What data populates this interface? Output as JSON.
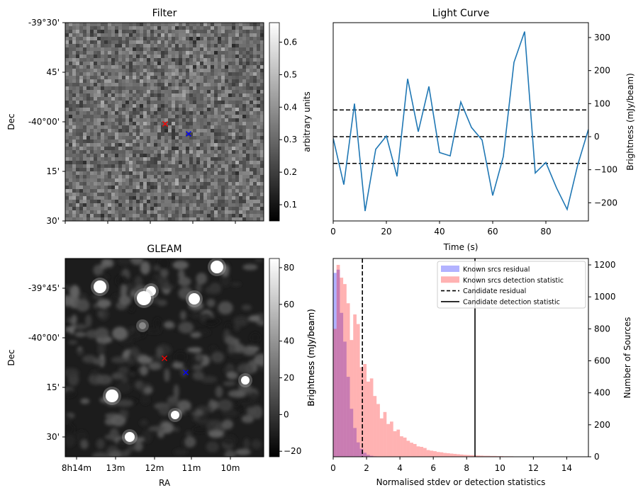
{
  "chart_data": [
    {
      "id": "filter",
      "type": "heatmap",
      "title": "Filter",
      "ylabel": "Dec",
      "ytick_labels": [
        "-39°30'",
        "45'",
        "-40°00'",
        "15'",
        "30'"
      ],
      "colorbar": {
        "label": "arbitrary units",
        "range": [
          0.05,
          0.66
        ],
        "ticks": [
          0.1,
          0.2,
          0.3,
          0.4,
          0.5,
          0.6
        ],
        "tick_labels": [
          "0.1",
          "0.2",
          "0.3",
          "0.4",
          "0.5",
          "0.6"
        ],
        "colormap": "gray"
      },
      "markers": [
        {
          "symbol": "x",
          "color": "#ff0000"
        },
        {
          "symbol": "x",
          "color": "#0000ff"
        }
      ]
    },
    {
      "id": "lightcurve",
      "type": "line",
      "title": "Light Curve",
      "xlabel": "Time (s)",
      "ylabel": "Brightness (mJy/beam)",
      "xlim": [
        0,
        96
      ],
      "ylim": [
        -255,
        345
      ],
      "xticks": [
        0,
        20,
        40,
        60,
        80
      ],
      "yticks": [
        -200,
        -100,
        0,
        100,
        200,
        300
      ],
      "color": "#1f77b4",
      "x": [
        0,
        4,
        8,
        12,
        16,
        20,
        24,
        28,
        32,
        36,
        40,
        44,
        48,
        52,
        56,
        60,
        64,
        68,
        72,
        76,
        80,
        84,
        88,
        92,
        96
      ],
      "y": [
        -5,
        -145,
        100,
        -225,
        -38,
        2,
        -120,
        175,
        15,
        152,
        -48,
        -58,
        105,
        28,
        -10,
        -178,
        -60,
        225,
        318,
        -110,
        -78,
        -155,
        -220,
        -85,
        22
      ],
      "hlines": [
        {
          "y": 81,
          "style": "dashed",
          "color": "#000000"
        },
        {
          "y": 0,
          "style": "dashed",
          "color": "#000000"
        },
        {
          "y": -81,
          "style": "dashed",
          "color": "#000000"
        }
      ]
    },
    {
      "id": "gleam",
      "type": "heatmap",
      "title": "GLEAM",
      "xlabel": "RA",
      "ylabel": "Dec",
      "xtick_labels": [
        "8h14m",
        "13m",
        "12m",
        "11m",
        "10m"
      ],
      "ytick_labels": [
        "-39°45'",
        "-40°00'",
        "15'",
        "30'"
      ],
      "colorbar": {
        "label": "Brightness (mJy/beam)",
        "range": [
          -23,
          85
        ],
        "ticks": [
          -20,
          0,
          20,
          40,
          60,
          80
        ],
        "tick_labels": [
          "−20",
          "0",
          "20",
          "40",
          "60",
          "80"
        ],
        "colormap": "gray"
      },
      "markers": [
        {
          "symbol": "x",
          "color": "#ff0000"
        },
        {
          "symbol": "x",
          "color": "#0000ff"
        }
      ]
    },
    {
      "id": "hist",
      "type": "bar",
      "xlabel": "Normalised stdev or detection statistics",
      "ylabel": "Number of Sources",
      "xlim": [
        0,
        15.3
      ],
      "ylim": [
        0,
        1240
      ],
      "xticks": [
        0,
        2,
        4,
        6,
        8,
        10,
        12,
        14
      ],
      "yticks": [
        0,
        200,
        400,
        600,
        800,
        1000,
        1200
      ],
      "bin_width": 0.2,
      "bin_start": 0,
      "series": [
        {
          "name": "Known srcs residual",
          "color": "#0000ff",
          "alpha": 0.3,
          "values": [
            1150,
            1170,
            900,
            720,
            500,
            300,
            180,
            90,
            50,
            25,
            12,
            6,
            3,
            1
          ]
        },
        {
          "name": "Known srcs detection statistic",
          "color": "#ff0000",
          "alpha": 0.3,
          "values": [
            800,
            1200,
            1120,
            1080,
            960,
            730,
            890,
            830,
            560,
            580,
            470,
            490,
            380,
            330,
            240,
            280,
            205,
            220,
            160,
            170,
            128,
            120,
            100,
            88,
            80,
            65,
            62,
            55,
            42,
            38,
            35,
            30,
            28,
            24,
            22,
            20,
            18,
            16,
            14,
            12,
            11,
            10,
            9,
            8,
            7,
            6,
            6,
            5,
            5,
            4,
            4,
            3,
            3,
            3,
            2,
            2,
            2,
            2,
            1,
            1,
            1,
            1,
            1,
            1,
            1,
            1,
            1,
            1,
            1,
            1
          ]
        }
      ],
      "vlines": [
        {
          "name": "Candidate residual",
          "x": 1.75,
          "style": "dashed",
          "color": "#000000"
        },
        {
          "name": "Candidate detection statistic",
          "x": 8.5,
          "style": "solid",
          "color": "#000000"
        }
      ],
      "extra_ylabel": "Brightness (mJy/beam)",
      "legend": "top-right"
    }
  ]
}
